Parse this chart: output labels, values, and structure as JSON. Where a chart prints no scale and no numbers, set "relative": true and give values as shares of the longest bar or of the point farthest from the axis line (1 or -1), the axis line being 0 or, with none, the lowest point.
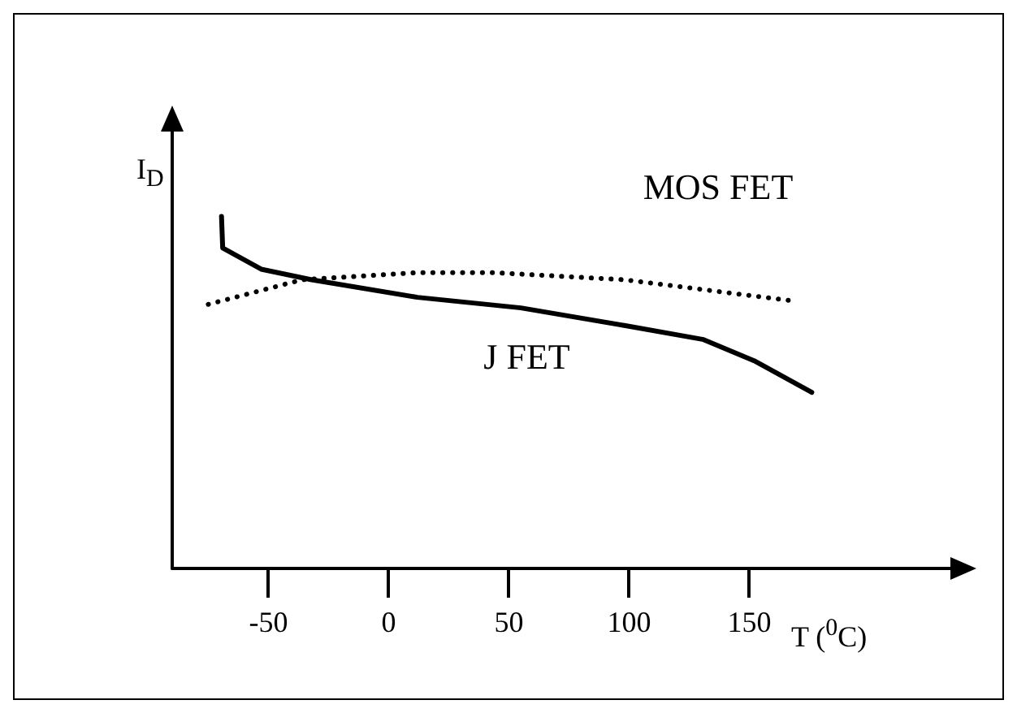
{
  "chart_data": {
    "type": "line",
    "relative": true,
    "xlabel": "T ($^{0}$C)",
    "ylabel": "I$_{D}$",
    "xlim": [
      -90,
      235
    ],
    "xticks": [
      -50,
      0,
      50,
      100,
      150
    ],
    "grid": false,
    "legend": false,
    "marker": "none",
    "series": [
      {
        "name": "J FET",
        "color": "#000000",
        "line_style": "solid",
        "x": [
          -69.5,
          -69,
          -53,
          -32,
          12,
          55,
          98,
          131,
          152,
          176
        ],
        "values": [
          1,
          0.91,
          0.85,
          0.82,
          0.77,
          0.74,
          0.69,
          0.65,
          0.59,
          0.5
        ]
      },
      {
        "name": "MOS FET",
        "color": "#000000",
        "line_style": "dotted",
        "x": [
          -75,
          -36,
          12,
          44,
          98,
          168
        ],
        "values": [
          0.75,
          0.82,
          0.84,
          0.84,
          0.82,
          0.76
        ]
      }
    ]
  }
}
